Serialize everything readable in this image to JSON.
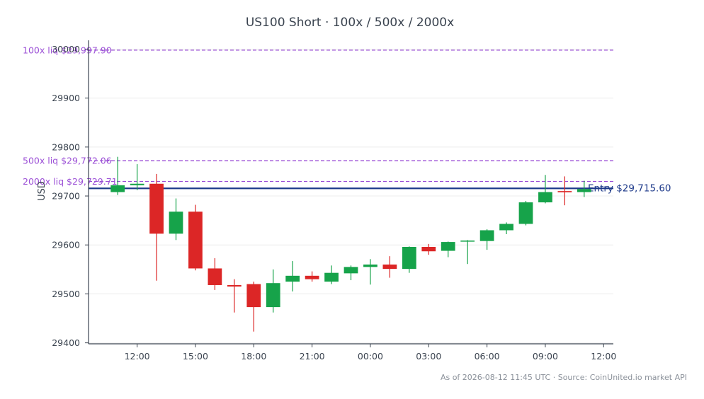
{
  "title": "US100 Short · 100x / 500x / 2000x",
  "footer": "As of 2026-08-12 11:45 UTC · Source: CoinUnited.io market API",
  "colors": {
    "up": "#16a34a",
    "down": "#dc2626",
    "liq": "#9b4fd6",
    "entry": "#1e3a8a",
    "axis": "#3b4450",
    "grid": "#ececec"
  },
  "chart_data": {
    "type": "candlestick",
    "title": "US100 Short · 100x / 500x / 2000x",
    "ylabel": "USD",
    "xlabel": "",
    "ylim": [
      29398,
      30018
    ],
    "yticks": [
      29400,
      29500,
      29600,
      29700,
      29800,
      29900,
      30000
    ],
    "xlim": [
      "2026-08-11 09:30",
      "2026-08-12 12:30"
    ],
    "xticks": [
      {
        "t": "2026-08-11 12:00",
        "label": "12:00"
      },
      {
        "t": "2026-08-11 15:00",
        "label": "15:00"
      },
      {
        "t": "2026-08-11 18:00",
        "label": "18:00"
      },
      {
        "t": "2026-08-11 21:00",
        "label": "21:00"
      },
      {
        "t": "2026-08-12 00:00",
        "label": "00:00"
      },
      {
        "t": "2026-08-12 03:00",
        "label": "03:00"
      },
      {
        "t": "2026-08-12 06:00",
        "label": "06:00"
      },
      {
        "t": "2026-08-12 09:00",
        "label": "09:00"
      },
      {
        "t": "2026-08-12 12:00",
        "label": "12:00"
      }
    ],
    "grid": true,
    "candles": [
      {
        "t": "2026-08-11 11:00",
        "open": 29708,
        "high": 29780,
        "low": 29702,
        "close": 29722
      },
      {
        "t": "2026-08-11 12:00",
        "open": 29722,
        "high": 29765,
        "low": 29712,
        "close": 29725
      },
      {
        "t": "2026-08-11 13:00",
        "open": 29725,
        "high": 29745,
        "low": 29527,
        "close": 29623
      },
      {
        "t": "2026-08-11 14:00",
        "open": 29623,
        "high": 29695,
        "low": 29610,
        "close": 29668
      },
      {
        "t": "2026-08-11 15:00",
        "open": 29668,
        "high": 29682,
        "low": 29548,
        "close": 29552
      },
      {
        "t": "2026-08-11 16:00",
        "open": 29552,
        "high": 29573,
        "low": 29508,
        "close": 29518
      },
      {
        "t": "2026-08-11 17:00",
        "open": 29518,
        "high": 29530,
        "low": 29462,
        "close": 29515
      },
      {
        "t": "2026-08-11 18:00",
        "open": 29520,
        "high": 29525,
        "low": 29423,
        "close": 29473
      },
      {
        "t": "2026-08-11 19:00",
        "open": 29473,
        "high": 29550,
        "low": 29462,
        "close": 29522
      },
      {
        "t": "2026-08-11 20:00",
        "open": 29525,
        "high": 29567,
        "low": 29505,
        "close": 29537
      },
      {
        "t": "2026-08-11 21:00",
        "open": 29537,
        "high": 29546,
        "low": 29525,
        "close": 29530
      },
      {
        "t": "2026-08-11 22:00",
        "open": 29525,
        "high": 29558,
        "low": 29520,
        "close": 29543
      },
      {
        "t": "2026-08-11 23:00",
        "open": 29542,
        "high": 29558,
        "low": 29528,
        "close": 29555
      },
      {
        "t": "2026-08-12 00:00",
        "open": 29555,
        "high": 29571,
        "low": 29519,
        "close": 29560
      },
      {
        "t": "2026-08-12 01:00",
        "open": 29560,
        "high": 29577,
        "low": 29533,
        "close": 29551
      },
      {
        "t": "2026-08-12 02:00",
        "open": 29551,
        "high": 29597,
        "low": 29543,
        "close": 29596
      },
      {
        "t": "2026-08-12 03:00",
        "open": 29596,
        "high": 29602,
        "low": 29580,
        "close": 29587
      },
      {
        "t": "2026-08-12 04:00",
        "open": 29588,
        "high": 29607,
        "low": 29575,
        "close": 29606
      },
      {
        "t": "2026-08-12 05:00",
        "open": 29607,
        "high": 29610,
        "low": 29561,
        "close": 29609
      },
      {
        "t": "2026-08-12 06:00",
        "open": 29608,
        "high": 29632,
        "low": 29590,
        "close": 29630
      },
      {
        "t": "2026-08-12 07:00",
        "open": 29630,
        "high": 29646,
        "low": 29622,
        "close": 29643
      },
      {
        "t": "2026-08-12 08:00",
        "open": 29643,
        "high": 29690,
        "low": 29640,
        "close": 29687
      },
      {
        "t": "2026-08-12 09:00",
        "open": 29687,
        "high": 29743,
        "low": 29685,
        "close": 29708
      },
      {
        "t": "2026-08-12 10:00",
        "open": 29710,
        "high": 29740,
        "low": 29681,
        "close": 29708
      },
      {
        "t": "2026-08-12 11:00",
        "open": 29708,
        "high": 29731,
        "low": 29698,
        "close": 29714
      }
    ],
    "levels": [
      {
        "label": "100x liq $29,997.90",
        "value": 29997.9,
        "style": "dashed",
        "color": "#9b4fd6"
      },
      {
        "label": "500x liq $29,772.06",
        "value": 29772.06,
        "style": "dashed",
        "color": "#9b4fd6"
      },
      {
        "label": "2000x liq $29,729.71",
        "value": 29729.71,
        "style": "dashed",
        "color": "#9b4fd6"
      }
    ],
    "entry": {
      "label": "Entry $29,715.60",
      "value": 29715.6,
      "color": "#1e3a8a"
    }
  }
}
